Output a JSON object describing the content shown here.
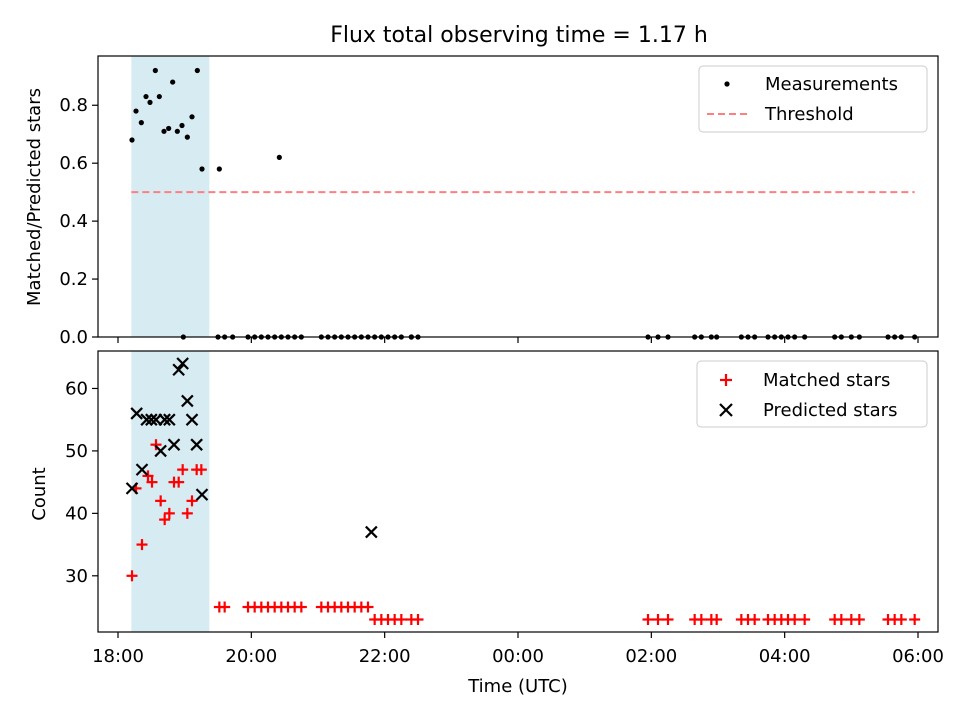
{
  "chart_data": {
    "title": "Flux total observing time = 1.17 h",
    "time_unit": "hours since 00:00 UTC (negative = previous evening)",
    "x_range": [
      -6.3,
      6.3
    ],
    "xlabel": "Time (UTC)",
    "xticks": [
      {
        "value": -6,
        "label": "18:00"
      },
      {
        "value": -4,
        "label": "20:00"
      },
      {
        "value": -2,
        "label": "22:00"
      },
      {
        "value": 0,
        "label": "00:00"
      },
      {
        "value": 2,
        "label": "02:00"
      },
      {
        "value": 4,
        "label": "04:00"
      },
      {
        "value": 6,
        "label": "06:00"
      }
    ],
    "highlight_band": {
      "x0": -5.8,
      "x1": -4.63,
      "color": "#add8e6"
    },
    "panels": [
      {
        "type": "scatter",
        "ylabel": "Matched/Predicted stars",
        "ylim": [
          0,
          0.97
        ],
        "yticks": [
          "0.0",
          "0.2",
          "0.4",
          "0.6",
          "0.8"
        ],
        "ytick_values": [
          0,
          0.2,
          0.4,
          0.6,
          0.8
        ],
        "legend_position": "top-right",
        "threshold": {
          "name": "Threshold",
          "value": 0.5,
          "x0": -5.8,
          "x1": 5.95,
          "color": "#ff7f7f"
        },
        "series": [
          {
            "name": "Measurements",
            "color": "#000000",
            "x": [
              -5.79,
              -5.73,
              -5.65,
              -5.58,
              -5.52,
              -5.44,
              -5.38,
              -5.31,
              -5.24,
              -5.18,
              -5.11,
              -5.04,
              -4.96,
              -4.89,
              -4.81,
              -4.74,
              -4.48,
              -3.58,
              -5.02,
              -4.5,
              -4.4,
              -4.28,
              -4.05,
              -3.95,
              -3.85,
              -3.75,
              -3.65,
              -3.55,
              -3.45,
              -3.35,
              -3.25,
              -2.95,
              -2.85,
              -2.75,
              -2.65,
              -2.55,
              -2.45,
              -2.35,
              -2.25,
              -2.15,
              -2.05,
              -1.95,
              -1.85,
              -1.75,
              -1.6,
              -1.5,
              -1.6,
              1.95,
              2.1,
              2.25,
              2.65,
              2.75,
              2.9,
              2.98,
              3.35,
              3.45,
              3.55,
              3.75,
              3.85,
              3.95,
              4.05,
              4.15,
              4.3,
              4.75,
              4.85,
              5.0,
              5.12,
              5.55,
              5.65,
              5.75,
              5.95
            ],
            "y": [
              0.68,
              0.78,
              0.74,
              0.83,
              0.81,
              0.92,
              0.83,
              0.71,
              0.72,
              0.88,
              0.71,
              0.73,
              0.69,
              0.76,
              0.92,
              0.58,
              0.58,
              0.62,
              0,
              0,
              0,
              0,
              0,
              0,
              0,
              0,
              0,
              0,
              0,
              0,
              0,
              0,
              0,
              0,
              0,
              0,
              0,
              0,
              0,
              0,
              0,
              0,
              0,
              0,
              0,
              0,
              0,
              0,
              0,
              0,
              0,
              0,
              0,
              0,
              0,
              0,
              0,
              0,
              0,
              0,
              0,
              0,
              0,
              0,
              0,
              0,
              0,
              0,
              0,
              0,
              0
            ]
          }
        ]
      },
      {
        "type": "scatter",
        "ylabel": "Count",
        "ylim": [
          21,
          66
        ],
        "yticks": [
          "30",
          "40",
          "50",
          "60"
        ],
        "ytick_values": [
          30,
          40,
          50,
          60
        ],
        "legend_position": "top-right",
        "series": [
          {
            "name": "Matched stars",
            "marker": "plus",
            "color": "#ff0000",
            "x": [
              -5.79,
              -5.73,
              -5.64,
              -5.55,
              -5.49,
              -5.43,
              -5.36,
              -5.3,
              -5.23,
              -5.16,
              -5.09,
              -5.03,
              -4.96,
              -4.89,
              -4.82,
              -4.75,
              -4.48,
              -4.4,
              -4.05,
              -3.95,
              -3.85,
              -3.75,
              -3.65,
              -3.55,
              -3.45,
              -3.35,
              -3.25,
              -2.95,
              -2.85,
              -2.75,
              -2.65,
              -2.55,
              -2.45,
              -2.35,
              -2.25,
              -2.15,
              -2.05,
              -1.95,
              -1.85,
              -1.75,
              -1.6,
              -1.5,
              1.95,
              2.1,
              2.25,
              2.65,
              2.75,
              2.9,
              2.98,
              3.35,
              3.45,
              3.55,
              3.75,
              3.85,
              3.95,
              4.05,
              4.15,
              4.3,
              4.75,
              4.85,
              5.0,
              5.12,
              5.55,
              5.65,
              5.75,
              5.95
            ],
            "y": [
              30,
              44,
              35,
              46,
              45,
              51,
              42,
              39,
              40,
              45,
              45,
              47,
              40,
              42,
              47,
              47,
              25,
              25,
              25,
              25,
              25,
              25,
              25,
              25,
              25,
              25,
              25,
              25,
              25,
              25,
              25,
              25,
              25,
              25,
              25,
              23,
              23,
              23,
              23,
              23,
              23,
              23,
              23,
              23,
              23,
              23,
              23,
              23,
              23,
              23,
              23,
              23,
              23,
              23,
              23,
              23,
              23,
              23,
              23,
              23,
              23,
              23,
              23,
              23,
              23,
              23
            ]
          },
          {
            "name": "Predicted stars",
            "marker": "x",
            "color": "#000000",
            "x": [
              -5.79,
              -5.72,
              -5.64,
              -5.57,
              -5.5,
              -5.43,
              -5.36,
              -5.3,
              -5.23,
              -5.16,
              -5.09,
              -5.03,
              -4.96,
              -4.89,
              -4.82,
              -4.74,
              -2.2
            ],
            "y": [
              44,
              56,
              47,
              55,
              55,
              55,
              50,
              55,
              55,
              51,
              63,
              64,
              58,
              55,
              51,
              43,
              37
            ]
          }
        ]
      }
    ]
  }
}
